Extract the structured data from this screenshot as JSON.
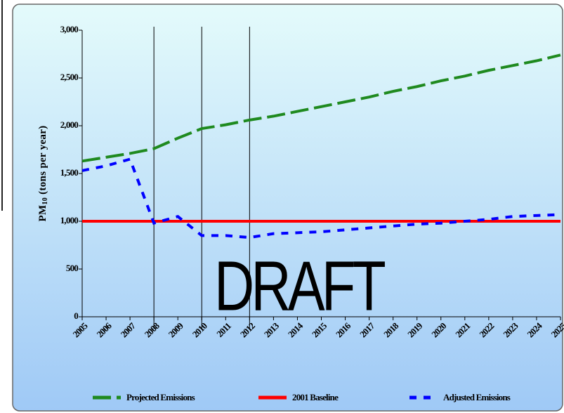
{
  "chart_data": {
    "type": "line",
    "ylabel": {
      "main": "PM",
      "sub": "10",
      "rest": " (tons per year)"
    },
    "x": [
      2005,
      2006,
      2007,
      2008,
      2009,
      2010,
      2011,
      2012,
      2013,
      2014,
      2015,
      2016,
      2017,
      2018,
      2019,
      2020,
      2021,
      2022,
      2023,
      2024,
      2025
    ],
    "xlim": [
      2005,
      2025
    ],
    "ylim": [
      0,
      3000
    ],
    "yticks": [
      0,
      500,
      {
        "value": 1000,
        "label": "1,000"
      },
      {
        "value": 1500,
        "label": "1,500"
      },
      {
        "value": 2000,
        "label": "2,000"
      },
      {
        "value": 2500,
        "label": "2,500"
      },
      {
        "value": 3000,
        "label": "3,000"
      }
    ],
    "vlines": [
      2008,
      2010,
      2012
    ],
    "annotation": "DRAFT",
    "series": [
      {
        "name": "Projected Emissions",
        "color": "#1f8a1f",
        "dash": "long",
        "values": [
          1630,
          1670,
          1710,
          1760,
          1870,
          1970,
          2010,
          2060,
          2100,
          2150,
          2200,
          2250,
          2300,
          2360,
          2410,
          2470,
          2520,
          2580,
          2630,
          2680,
          2740
        ]
      },
      {
        "name": "2001 Baseline",
        "color": "#ff0000",
        "dash": "solid",
        "values": [
          1000,
          1000,
          1000,
          1000,
          1000,
          1000,
          1000,
          1000,
          1000,
          1000,
          1000,
          1000,
          1000,
          1000,
          1000,
          1000,
          1000,
          1000,
          1000,
          1000,
          1000
        ]
      },
      {
        "name": "Adjusted Emissions",
        "color": "#0000ff",
        "dash": "short",
        "values": [
          1530,
          1580,
          1650,
          980,
          1050,
          850,
          850,
          830,
          870,
          880,
          890,
          910,
          930,
          950,
          970,
          980,
          1000,
          1020,
          1050,
          1060,
          1070
        ]
      }
    ]
  }
}
